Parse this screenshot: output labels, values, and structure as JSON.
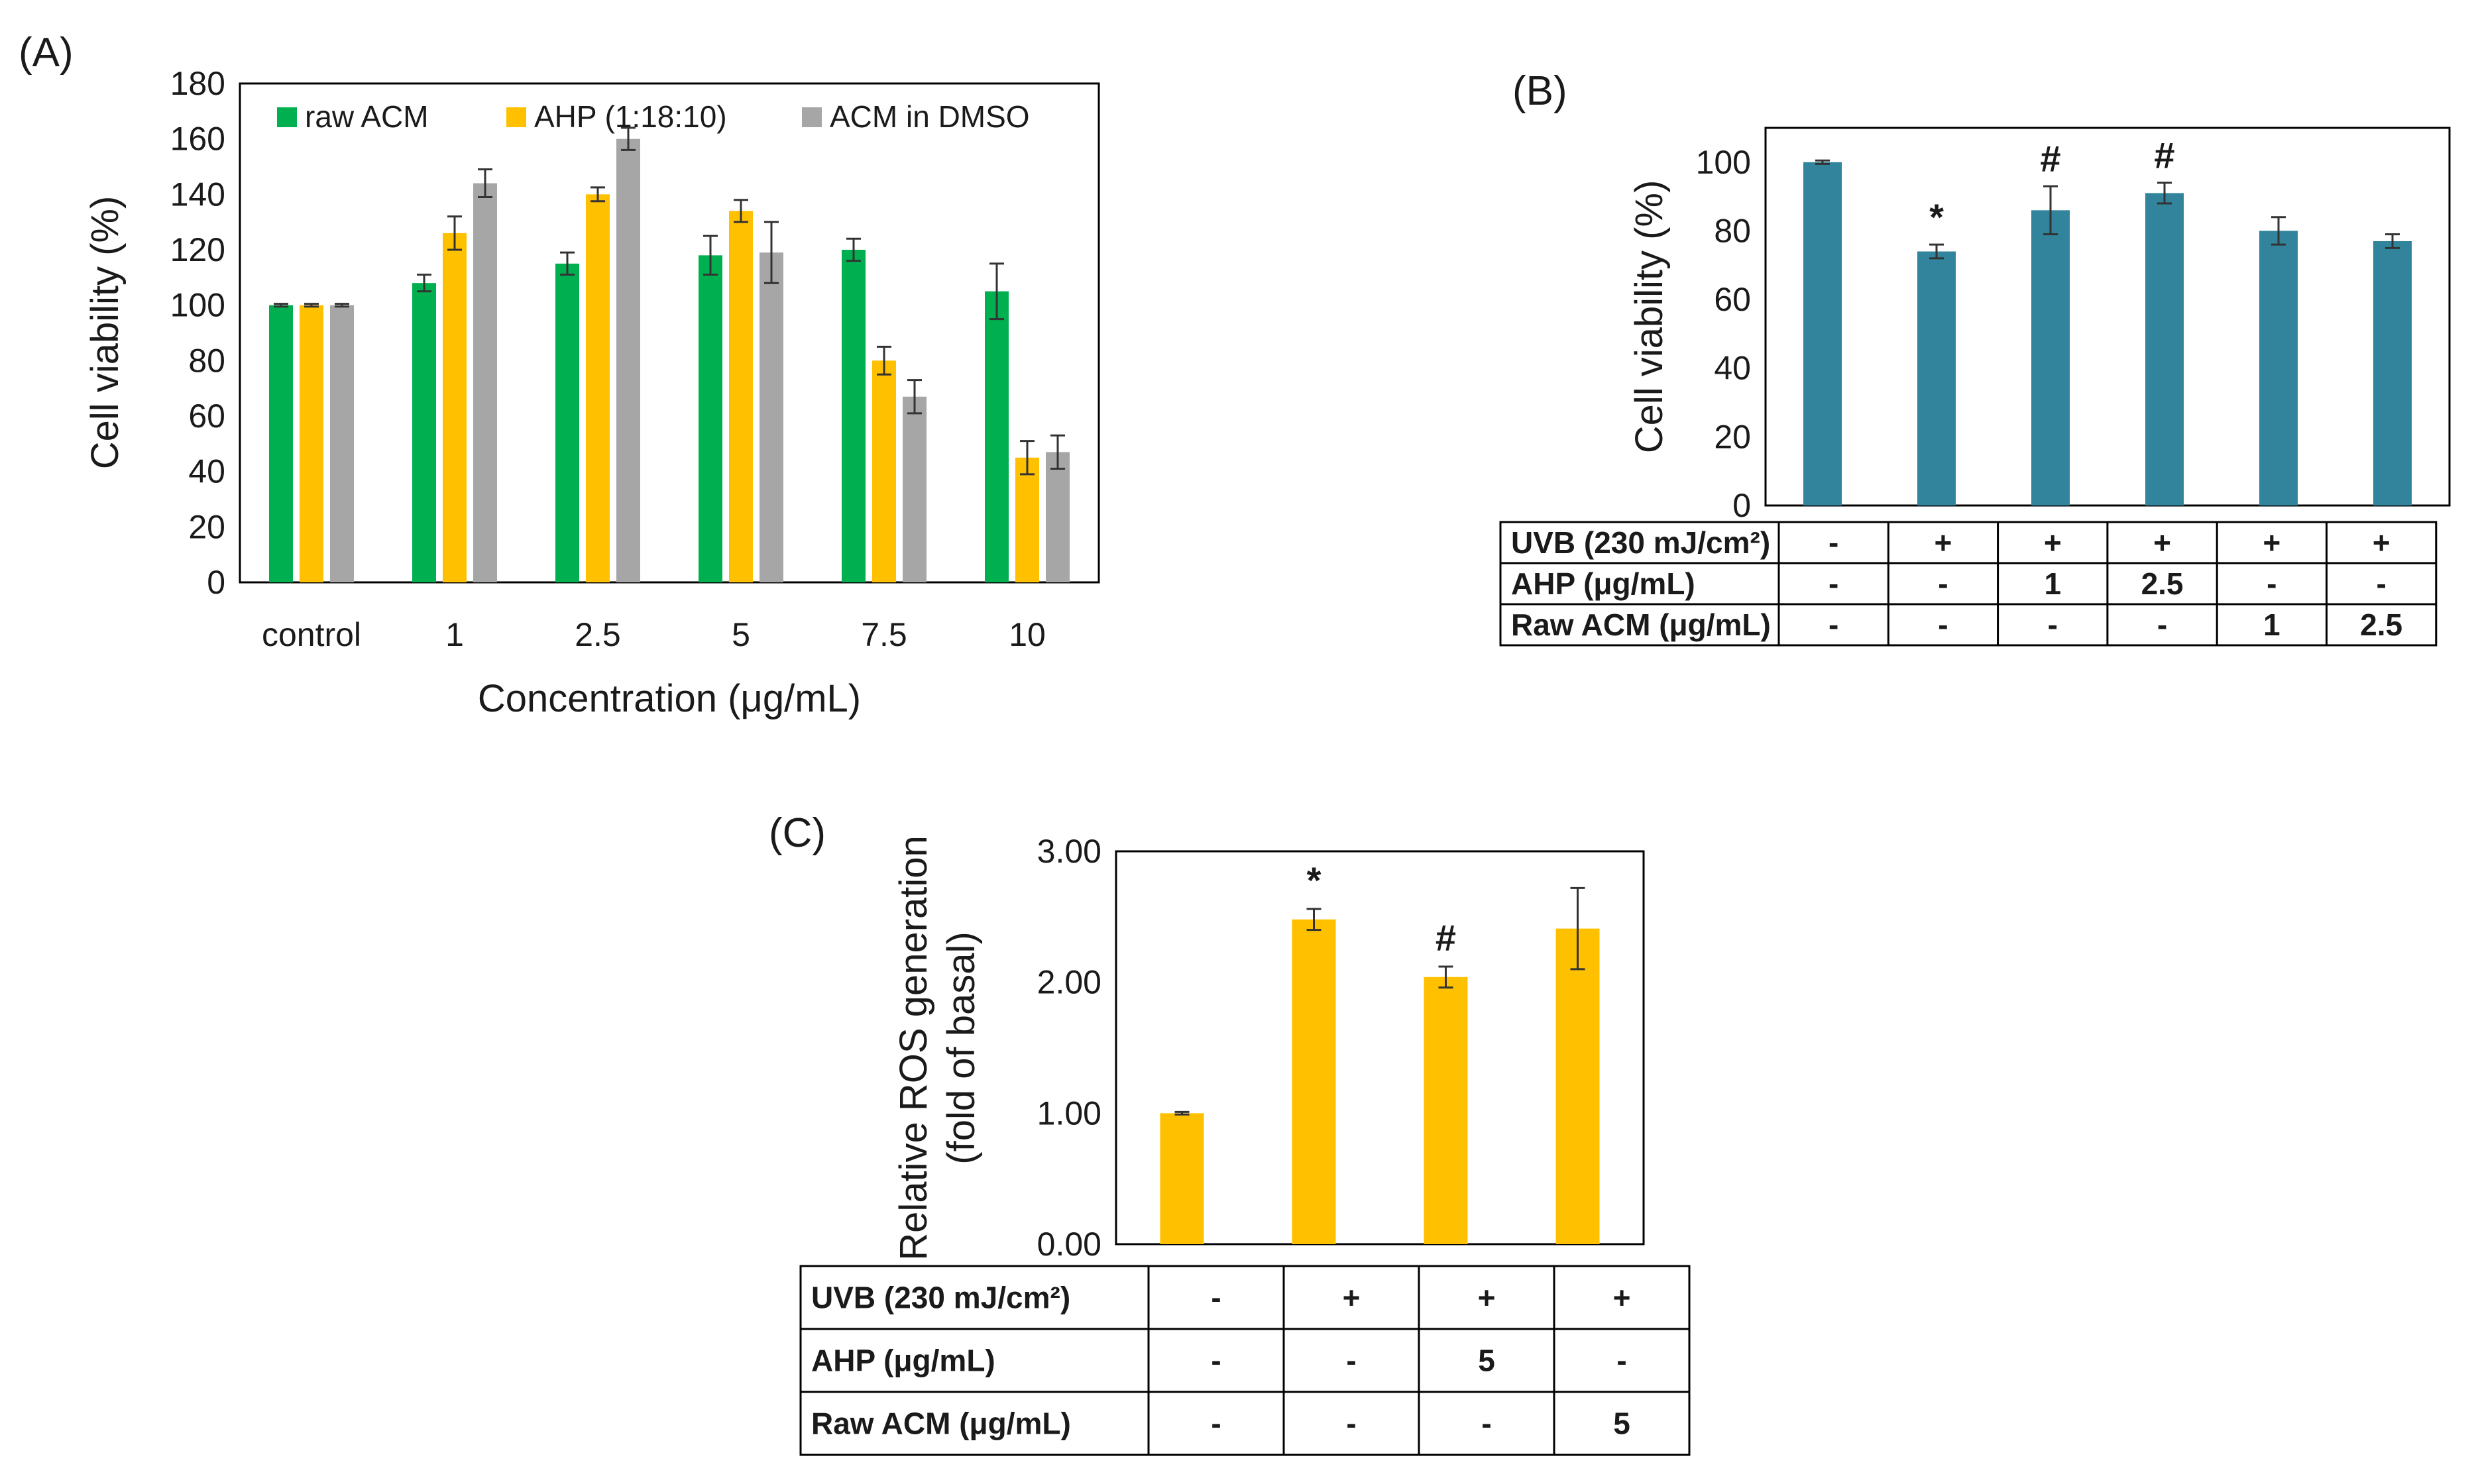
{
  "chart_data": [
    {
      "panel_label": "(A)",
      "type": "bar",
      "ylabel": "Cell viability (%)",
      "xlabel": "Concentration (μg/mL)",
      "ylim": [
        0,
        180
      ],
      "yticks": [
        "0",
        "20",
        "40",
        "60",
        "80",
        "100",
        "120",
        "140",
        "160",
        "180"
      ],
      "categories": [
        "control",
        "1",
        "2.5",
        "5",
        "7.5",
        "10"
      ],
      "legend_position": "top",
      "series": [
        {
          "name": "raw ACM",
          "color": "#00b050",
          "values": [
            100,
            108,
            115,
            118,
            120,
            105
          ],
          "errors": [
            0.5,
            3,
            4,
            7,
            4,
            10
          ]
        },
        {
          "name": "AHP (1:18:10)",
          "color": "#ffc000",
          "values": [
            100,
            126,
            140,
            134,
            80,
            45
          ],
          "errors": [
            0.5,
            6,
            2.5,
            4,
            5,
            6
          ]
        },
        {
          "name": "ACM in DMSO",
          "color": "#a6a6a6",
          "values": [
            100,
            144,
            160,
            119,
            67,
            47
          ],
          "errors": [
            0.5,
            5,
            4,
            11,
            6,
            6
          ]
        }
      ]
    },
    {
      "panel_label": "(B)",
      "type": "bar",
      "ylabel": "Cell viability (%)",
      "ylim": [
        0,
        110
      ],
      "yticks": [
        "0",
        "20",
        "40",
        "60",
        "80",
        "100"
      ],
      "color": "#31849b",
      "values": [
        100,
        74,
        86,
        91,
        80,
        77
      ],
      "errors": [
        0.5,
        2,
        7,
        3,
        4,
        2
      ],
      "annotations": [
        "",
        "*",
        "#",
        "#",
        "",
        ""
      ],
      "table": {
        "rows": [
          {
            "label": "UVB (230 mJ/cm²)",
            "cells": [
              "-",
              "+",
              "+",
              "+",
              "+",
              "+"
            ]
          },
          {
            "label": "AHP (μg/mL)",
            "cells": [
              "-",
              "-",
              "1",
              "2.5",
              "-",
              "-"
            ]
          },
          {
            "label": "Raw ACM (μg/mL)",
            "cells": [
              "-",
              "-",
              "-",
              "-",
              "1",
              "2.5"
            ]
          }
        ]
      }
    },
    {
      "panel_label": "(C)",
      "type": "bar",
      "ylabel_line1": "Relative ROS generation",
      "ylabel_line2": "(fold of basal)",
      "ylim": [
        0,
        3
      ],
      "yticks": [
        "0.00",
        "1.00",
        "2.00",
        "3.00"
      ],
      "color": "#ffc000",
      "values": [
        1.0,
        2.48,
        2.04,
        2.41
      ],
      "errors": [
        0.01,
        0.08,
        0.08,
        0.31
      ],
      "annotations": [
        "",
        "*",
        "#",
        ""
      ],
      "table": {
        "rows": [
          {
            "label": "UVB (230 mJ/cm²)",
            "cells": [
              "-",
              "+",
              "+",
              "+"
            ]
          },
          {
            "label": "AHP (μg/mL)",
            "cells": [
              "-",
              "-",
              "5",
              "-"
            ]
          },
          {
            "label": "Raw ACM (μg/mL)",
            "cells": [
              "-",
              "-",
              "-",
              "5"
            ]
          }
        ]
      }
    }
  ]
}
